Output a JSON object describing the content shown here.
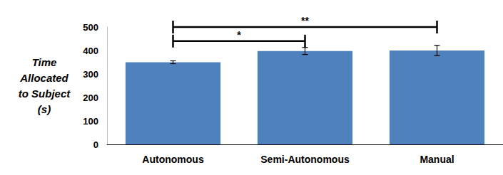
{
  "chart_data": {
    "type": "bar",
    "y_label": "Time\nAllocated\nto Subject\n(s)",
    "categories": [
      "Autonomous",
      "Semi-Autonomous",
      "Manual"
    ],
    "values": [
      350,
      398,
      400
    ],
    "errors": [
      6,
      15,
      22
    ],
    "color": "#4f81bd",
    "ylim": [
      0,
      500
    ],
    "yticks": [
      0,
      100,
      200,
      300,
      400,
      500
    ],
    "grid": false,
    "annotations": [
      {
        "from": "Autonomous",
        "to": "Semi-Autonomous",
        "label": "*"
      },
      {
        "from": "Autonomous",
        "to": "Manual",
        "label": "**"
      }
    ]
  }
}
